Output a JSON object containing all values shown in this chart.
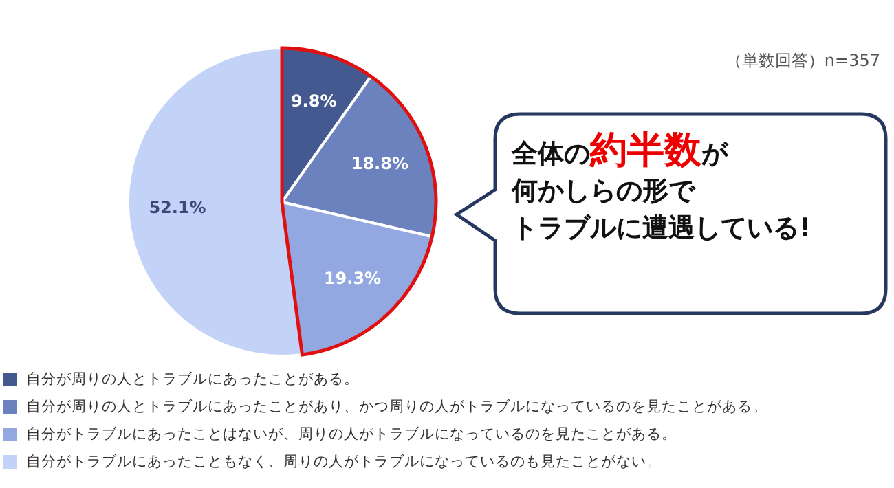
{
  "chart_data": {
    "type": "pie",
    "categories": [
      "自分が周りの人とトラブルにあったことがある。",
      "自分が周りの人とトラブルにあったことがあり、かつ周りの人がトラブルになっているのを見たことがある。",
      "自分がトラブルにあったことはないが、周りの人がトラブルになっているのを見たことがある。",
      "自分がトラブルにあったこともなく、周りの人がトラブルになっているのも見たことがない。"
    ],
    "values": [
      9.8,
      18.8,
      19.3,
      52.1
    ],
    "colors": [
      "#44598f",
      "#6b82bf",
      "#93a8e0",
      "#c3d3f7"
    ],
    "value_labels": [
      "9.8%",
      "18.8%",
      "19.3%",
      "52.1%"
    ],
    "legend": "bottom",
    "annotations": [
      "（単数回答）n=357",
      "全体の",
      "約半数",
      "が",
      "何かしらの形で",
      "トラブルに遭遇している!"
    ]
  }
}
